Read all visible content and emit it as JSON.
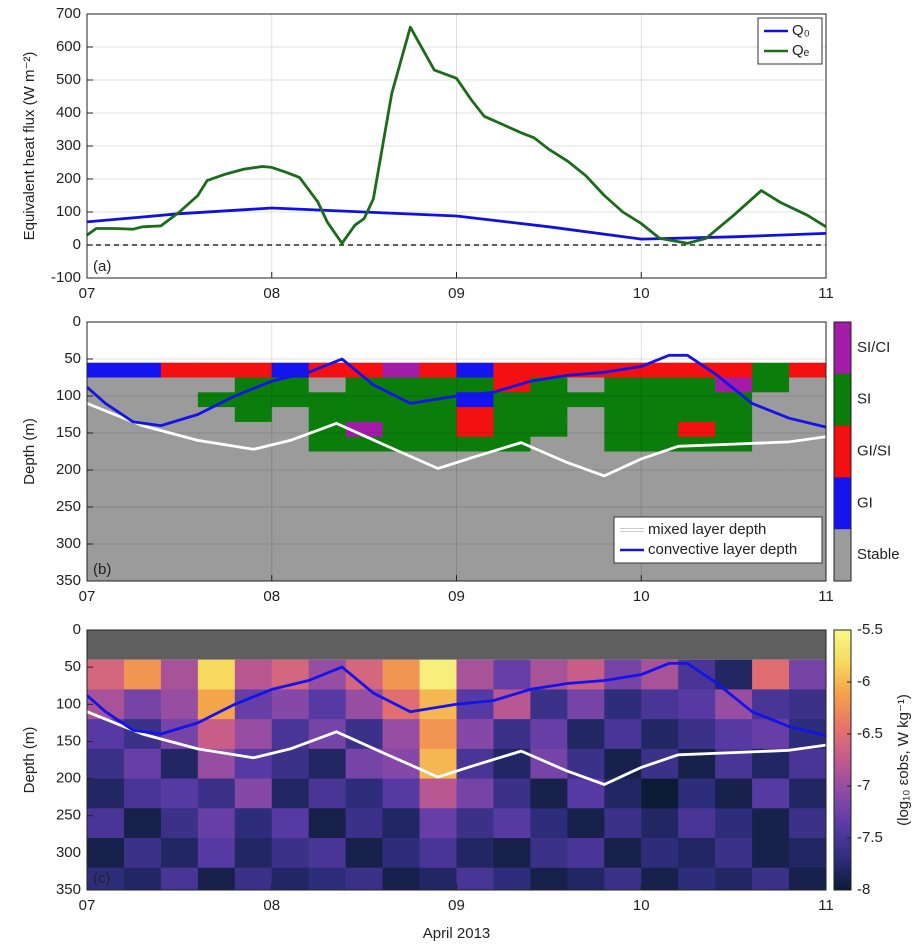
{
  "chart_data": [
    {
      "type": "line",
      "ylabel": "Equivalent heat flux (W m⁻²)",
      "panel_label": "(a)",
      "xlim": [
        7,
        11
      ],
      "xticks": [
        {
          "value": 7,
          "label": "07"
        },
        {
          "value": 8,
          "label": "08"
        },
        {
          "value": 9,
          "label": "09"
        },
        {
          "value": 10,
          "label": "10"
        },
        {
          "value": 11,
          "label": "11"
        }
      ],
      "ylim": [
        -100,
        700
      ],
      "yticks": [
        -100,
        0,
        100,
        200,
        300,
        400,
        500,
        600,
        700
      ],
      "grid": true,
      "legend": "upper right",
      "series": [
        {
          "name": "Q₀",
          "color": "#1010e0",
          "x": [
            7,
            7.5,
            8,
            8.5,
            9,
            9.5,
            10,
            10.5,
            11
          ],
          "values": [
            70,
            95,
            112,
            100,
            88,
            55,
            18,
            25,
            35
          ]
        },
        {
          "name": "Qₑ",
          "color": "#1a6b1a",
          "x": [
            7,
            7.05,
            7.15,
            7.25,
            7.3,
            7.4,
            7.5,
            7.6,
            7.65,
            7.75,
            7.85,
            7.95,
            8,
            8.08,
            8.15,
            8.25,
            8.3,
            8.38,
            8.45,
            8.5,
            8.55,
            8.65,
            8.75,
            8.88,
            9,
            9.08,
            9.15,
            9.25,
            9.35,
            9.42,
            9.5,
            9.6,
            9.7,
            9.8,
            9.9,
            10,
            10.1,
            10.25,
            10.35,
            10.5,
            10.65,
            10.75,
            10.9,
            11
          ],
          "values": [
            30,
            50,
            50,
            48,
            55,
            58,
            100,
            150,
            195,
            215,
            230,
            238,
            235,
            220,
            205,
            130,
            70,
            5,
            60,
            80,
            140,
            460,
            660,
            530,
            505,
            440,
            390,
            365,
            340,
            325,
            290,
            255,
            210,
            150,
            100,
            65,
            20,
            5,
            20,
            90,
            165,
            130,
            90,
            55
          ]
        }
      ]
    },
    {
      "type": "class_heatmap",
      "ylabel": "Depth (m)",
      "panel_label": "(b)",
      "xlim": [
        7,
        11
      ],
      "xticks": [
        {
          "value": 7,
          "label": "07"
        },
        {
          "value": 8,
          "label": "08"
        },
        {
          "value": 9,
          "label": "09"
        },
        {
          "value": 10,
          "label": "10"
        },
        {
          "value": 11,
          "label": "11"
        }
      ],
      "ylim": [
        0,
        350
      ],
      "y_reverse": true,
      "yticks": [
        0,
        50,
        100,
        150,
        200,
        250,
        300,
        350
      ],
      "grid": true,
      "legend": "lower right",
      "classes": [
        {
          "name": "SI/CI",
          "color": "#a21ca8"
        },
        {
          "name": "SI",
          "color": "#0b7d0b"
        },
        {
          "name": "GI/SI",
          "color": "#f41010"
        },
        {
          "name": "GI",
          "color": "#1414f0"
        },
        {
          "name": "Stable",
          "color": "#9b9b9b"
        }
      ],
      "xedges": [
        7,
        7.2,
        7.4,
        7.6,
        7.8,
        8,
        8.2,
        8.4,
        8.6,
        8.8,
        9,
        9.2,
        9.4,
        9.6,
        9.8,
        10,
        10.2,
        10.4,
        10.6,
        10.8,
        11
      ],
      "yedges": [
        55,
        75,
        95,
        115,
        135,
        155,
        175,
        350
      ],
      "z": [
        [
          3,
          3,
          2,
          2,
          2,
          3,
          2,
          2,
          0,
          2,
          3,
          2,
          2,
          2,
          2,
          2,
          2,
          2,
          1,
          2
        ],
        [
          4,
          4,
          4,
          4,
          1,
          1,
          4,
          1,
          1,
          1,
          1,
          2,
          1,
          4,
          1,
          1,
          1,
          0,
          1,
          4
        ],
        [
          4,
          4,
          4,
          1,
          1,
          1,
          1,
          1,
          1,
          1,
          3,
          1,
          1,
          1,
          1,
          1,
          1,
          1,
          4,
          4
        ],
        [
          4,
          4,
          4,
          4,
          1,
          4,
          1,
          1,
          1,
          1,
          2,
          1,
          1,
          4,
          1,
          1,
          1,
          1,
          4,
          4
        ],
        [
          4,
          4,
          4,
          4,
          4,
          4,
          1,
          0,
          1,
          1,
          2,
          1,
          1,
          4,
          1,
          1,
          2,
          1,
          4,
          4
        ],
        [
          4,
          4,
          4,
          4,
          4,
          4,
          1,
          1,
          1,
          1,
          1,
          1,
          4,
          4,
          1,
          1,
          1,
          1,
          4,
          4
        ],
        [
          4,
          4,
          4,
          4,
          4,
          4,
          4,
          4,
          4,
          4,
          4,
          4,
          4,
          4,
          4,
          4,
          4,
          4,
          4,
          4
        ]
      ],
      "series": [
        {
          "name": "mixed layer depth",
          "color": "#ffffff",
          "x": [
            7,
            7.3,
            7.6,
            7.9,
            8.1,
            8.35,
            8.6,
            8.9,
            9.1,
            9.35,
            9.6,
            9.8,
            10,
            10.2,
            10.5,
            10.8,
            11
          ],
          "values": [
            110,
            140,
            160,
            172,
            160,
            137,
            165,
            198,
            182,
            163,
            190,
            208,
            185,
            168,
            165,
            162,
            155
          ]
        },
        {
          "name": "convective layer depth",
          "color": "#1414e8",
          "x": [
            7,
            7.1,
            7.25,
            7.4,
            7.6,
            7.8,
            8,
            8.2,
            8.38,
            8.55,
            8.75,
            9,
            9.2,
            9.4,
            9.6,
            9.8,
            10,
            10.15,
            10.25,
            10.4,
            10.6,
            10.8,
            11
          ],
          "values": [
            88,
            110,
            135,
            140,
            125,
            100,
            80,
            68,
            50,
            85,
            110,
            100,
            95,
            80,
            72,
            68,
            60,
            45,
            45,
            70,
            110,
            130,
            142
          ]
        }
      ]
    },
    {
      "type": "heatmap",
      "ylabel": "Depth (m)",
      "panel_label": "(c)",
      "xlabel": "April 2013",
      "clabel": "(log₁₀ εobs, W kg⁻¹)",
      "xlim": [
        7,
        11
      ],
      "xticks": [
        {
          "value": 7,
          "label": "07"
        },
        {
          "value": 8,
          "label": "08"
        },
        {
          "value": 9,
          "label": "09"
        },
        {
          "value": 10,
          "label": "10"
        },
        {
          "value": 11,
          "label": "11"
        }
      ],
      "ylim": [
        0,
        350
      ],
      "y_reverse": true,
      "yticks": [
        0,
        50,
        100,
        150,
        200,
        250,
        300,
        350
      ],
      "grid": false,
      "clim": [
        -8,
        -5.5
      ],
      "cticks": [
        -8,
        -7.5,
        -7,
        -6.5,
        -6,
        -5.5
      ],
      "colormap": [
        "#0c1b35",
        "#2f2e7e",
        "#5a3aa6",
        "#8c4aa6",
        "#c25a8e",
        "#e8736a",
        "#f4a04a",
        "#f6d95e",
        "#f8f888"
      ],
      "xedges": [
        7,
        7.2,
        7.4,
        7.6,
        7.8,
        8,
        8.2,
        8.4,
        8.6,
        8.8,
        9,
        9.2,
        9.4,
        9.6,
        9.8,
        10,
        10.2,
        10.4,
        10.6,
        10.8,
        11
      ],
      "yedges": [
        40,
        80,
        120,
        160,
        200,
        240,
        280,
        320,
        350
      ],
      "z": [
        [
          -6.6,
          -6.2,
          -6.9,
          -5.8,
          -6.8,
          -6.6,
          -7.0,
          -6.6,
          -6.2,
          -5.6,
          -6.9,
          -7.3,
          -6.9,
          -6.7,
          -7.2,
          -6.9,
          -7.5,
          -7.8,
          -6.5,
          -7.2
        ],
        [
          -6.9,
          -7.2,
          -7.0,
          -6.1,
          -7.3,
          -7.1,
          -7.4,
          -7.0,
          -6.5,
          -6.0,
          -7.4,
          -6.8,
          -7.6,
          -7.2,
          -7.7,
          -7.5,
          -7.4,
          -7.0,
          -7.5,
          -7.6
        ],
        [
          -7.4,
          -7.6,
          -7.2,
          -6.7,
          -7.0,
          -7.5,
          -7.2,
          -7.6,
          -7.0,
          -6.2,
          -7.1,
          -7.6,
          -7.3,
          -7.8,
          -7.5,
          -7.8,
          -7.6,
          -7.4,
          -7.3,
          -7.7
        ],
        [
          -7.6,
          -7.3,
          -7.8,
          -7.0,
          -7.4,
          -7.6,
          -7.8,
          -7.2,
          -7.1,
          -6.0,
          -7.5,
          -7.8,
          -7.2,
          -7.6,
          -7.9,
          -7.6,
          -7.9,
          -7.5,
          -7.8,
          -7.5
        ],
        [
          -7.8,
          -7.5,
          -7.4,
          -7.6,
          -7.1,
          -7.8,
          -7.5,
          -7.7,
          -7.4,
          -6.8,
          -7.2,
          -7.6,
          -7.9,
          -7.4,
          -7.8,
          -8.0,
          -7.7,
          -7.9,
          -7.4,
          -7.8
        ],
        [
          -7.5,
          -7.9,
          -7.6,
          -7.3,
          -7.7,
          -7.4,
          -7.9,
          -7.6,
          -7.8,
          -7.3,
          -7.6,
          -7.4,
          -7.7,
          -7.9,
          -7.6,
          -7.8,
          -7.5,
          -7.7,
          -7.9,
          -7.6
        ],
        [
          -7.9,
          -7.6,
          -7.8,
          -7.4,
          -7.8,
          -7.6,
          -7.5,
          -7.9,
          -7.7,
          -7.5,
          -7.8,
          -7.9,
          -7.6,
          -7.5,
          -7.9,
          -7.7,
          -7.8,
          -7.6,
          -7.9,
          -7.8
        ],
        [
          -7.7,
          -7.8,
          -7.5,
          -7.9,
          -7.6,
          -7.8,
          -7.7,
          -7.6,
          -7.9,
          -7.8,
          -7.5,
          -7.7,
          -7.9,
          -7.8,
          -7.6,
          -7.9,
          -7.7,
          -7.8,
          -7.6,
          -7.9
        ]
      ],
      "series": [
        {
          "color": "#ffffff",
          "x": [
            7,
            7.3,
            7.6,
            7.9,
            8.1,
            8.35,
            8.6,
            8.9,
            9.1,
            9.35,
            9.6,
            9.8,
            10,
            10.2,
            10.5,
            10.8,
            11
          ],
          "values": [
            110,
            140,
            160,
            172,
            160,
            137,
            165,
            198,
            182,
            163,
            190,
            208,
            185,
            168,
            165,
            162,
            155
          ]
        },
        {
          "color": "#1414e8",
          "x": [
            7,
            7.1,
            7.25,
            7.4,
            7.6,
            7.8,
            8,
            8.2,
            8.38,
            8.55,
            8.75,
            9,
            9.2,
            9.4,
            9.6,
            9.8,
            10,
            10.15,
            10.25,
            10.4,
            10.6,
            10.8,
            11
          ],
          "values": [
            88,
            110,
            135,
            140,
            125,
            100,
            80,
            68,
            50,
            85,
            110,
            100,
            95,
            80,
            72,
            68,
            60,
            45,
            45,
            70,
            110,
            130,
            142
          ]
        }
      ]
    }
  ]
}
